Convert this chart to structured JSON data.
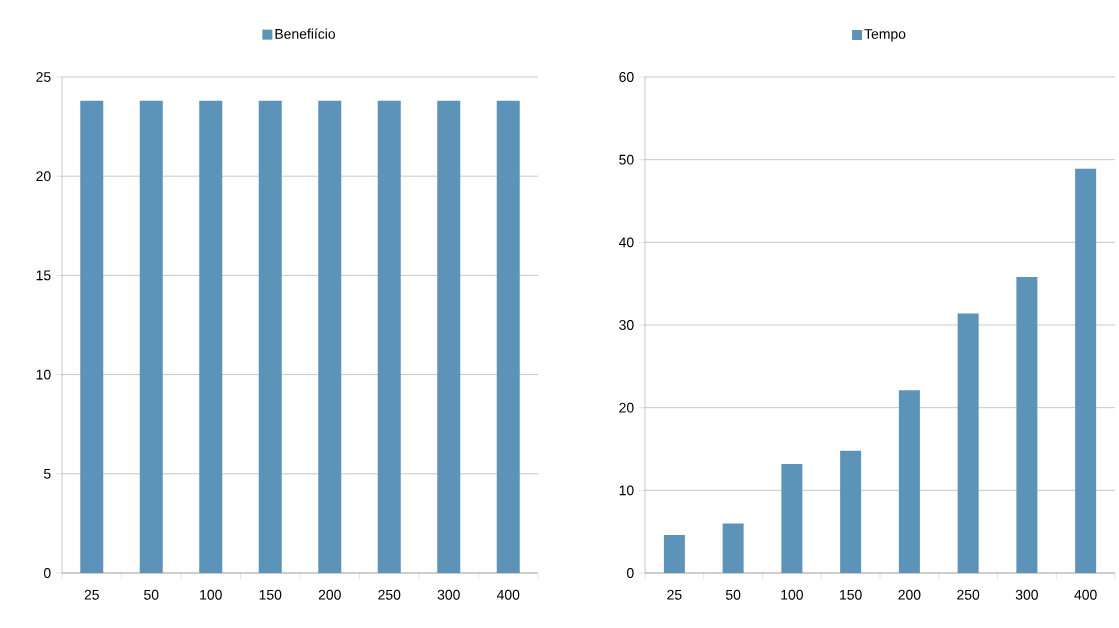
{
  "chart_data": [
    {
      "type": "bar",
      "categories": [
        "25",
        "50",
        "100",
        "150",
        "200",
        "250",
        "300",
        "400"
      ],
      "series": [
        {
          "name": "Benefiício",
          "color": "#5b93b9",
          "values": [
            23.8,
            23.8,
            23.8,
            23.8,
            23.8,
            23.8,
            23.8,
            23.8
          ]
        }
      ],
      "ylim": [
        0,
        25
      ],
      "yticks": [
        0,
        5,
        10,
        15,
        20,
        25
      ],
      "grid": "y",
      "legend": "top"
    },
    {
      "type": "bar",
      "categories": [
        "25",
        "50",
        "100",
        "150",
        "200",
        "250",
        "300",
        "400"
      ],
      "series": [
        {
          "name": "Tempo",
          "color": "#5b93b9",
          "values": [
            4.6,
            6.0,
            13.2,
            14.8,
            22.1,
            31.4,
            35.8,
            48.9
          ]
        }
      ],
      "ylim": [
        0,
        60
      ],
      "yticks": [
        0,
        10,
        20,
        30,
        40,
        50,
        60
      ],
      "grid": "y",
      "legend": "top"
    }
  ]
}
